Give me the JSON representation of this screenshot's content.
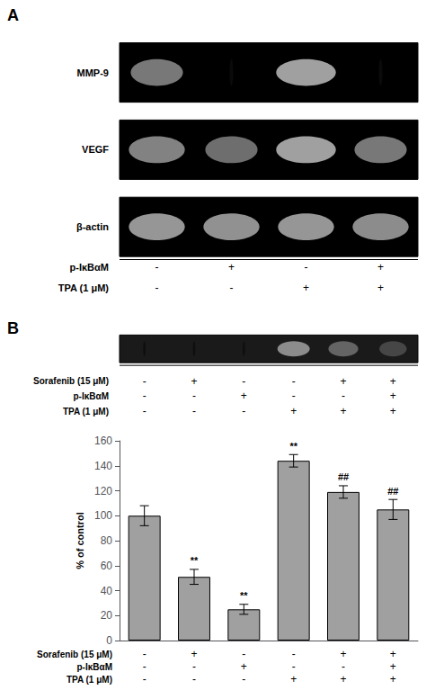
{
  "chart_data": {
    "type": "bar",
    "panel_labels": [
      "A",
      "B"
    ],
    "gels_A": [
      {
        "label": "MMP-9",
        "bands": [
          {
            "intensity": 120,
            "width": 0.7
          },
          {
            "intensity": 10,
            "width": 0.05
          },
          {
            "intensity": 160,
            "width": 0.8
          },
          {
            "intensity": 10,
            "width": 0.05
          }
        ]
      },
      {
        "label": "VEGF",
        "bands": [
          {
            "intensity": 130,
            "width": 0.75
          },
          {
            "intensity": 110,
            "width": 0.7
          },
          {
            "intensity": 160,
            "width": 0.8
          },
          {
            "intensity": 120,
            "width": 0.7
          }
        ]
      },
      {
        "label": "β-actin",
        "bands": [
          {
            "intensity": 150,
            "width": 0.75
          },
          {
            "intensity": 145,
            "width": 0.75
          },
          {
            "intensity": 150,
            "width": 0.75
          },
          {
            "intensity": 140,
            "width": 0.75
          }
        ]
      }
    ],
    "rows_A": [
      {
        "label": "p-IκBαM",
        "signs": [
          "-",
          "+",
          "-",
          "+"
        ]
      },
      {
        "label": "TPA (1 μM)",
        "signs": [
          "-",
          "-",
          "+",
          "+"
        ]
      }
    ],
    "gel_B": [
      {
        "intensity": 15,
        "width": 0.05
      },
      {
        "intensity": 15,
        "width": 0.05
      },
      {
        "intensity": 15,
        "width": 0.05
      },
      {
        "intensity": 140,
        "width": 0.65
      },
      {
        "intensity": 100,
        "width": 0.6
      },
      {
        "intensity": 70,
        "width": 0.55
      }
    ],
    "rows": [
      {
        "label": "Sorafenib (15 μM)",
        "signs": [
          "-",
          "+",
          "-",
          "-",
          "+",
          "+"
        ]
      },
      {
        "label": "p-IκBαM",
        "signs": [
          "-",
          "-",
          "+",
          "-",
          "-",
          "+"
        ]
      },
      {
        "label": "TPA (1 μM)",
        "signs": [
          "-",
          "-",
          "-",
          "+",
          "+",
          "+"
        ]
      }
    ],
    "values": [
      100,
      51,
      25,
      144,
      119,
      105
    ],
    "errors": [
      8,
      6,
      4,
      5,
      5,
      8
    ],
    "annotations": [
      null,
      "**",
      "**",
      "**",
      "##",
      "##"
    ],
    "color": "#a0a0a0",
    "ylabel": "% of control",
    "ylim": [
      0,
      160
    ],
    "yticks": [
      0,
      20,
      40,
      60,
      80,
      100,
      120,
      140,
      160
    ],
    "grid": false
  }
}
